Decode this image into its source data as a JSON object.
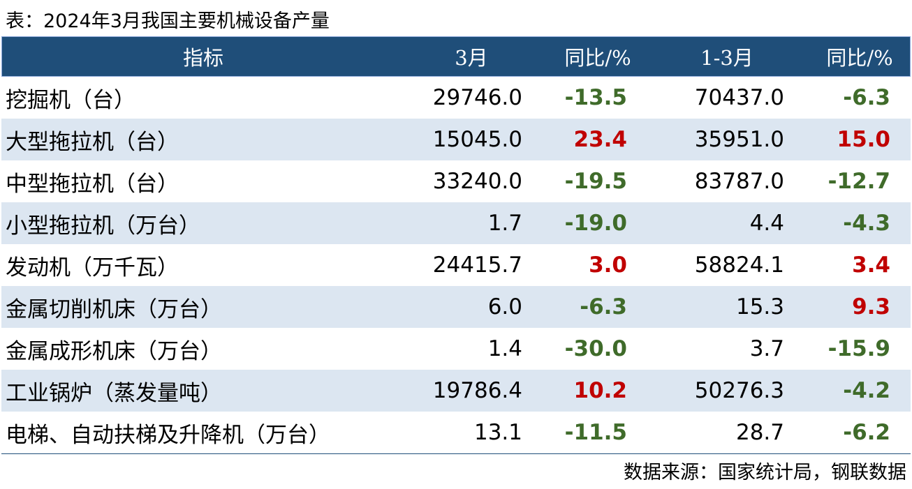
{
  "title": "表：2024年3月我国主要机械设备产量",
  "table": {
    "header": [
      "指标",
      "3月",
      "同比/%",
      "1-3月",
      "同比/%"
    ],
    "rows": [
      [
        "挖掘机（台）",
        "29746.0",
        "-13.5",
        "70437.0",
        "-6.3"
      ],
      [
        "大型拖拉机（台）",
        "15045.0",
        "23.4",
        "35951.0",
        "15.0"
      ],
      [
        "中型拖拉机（台）",
        "33240.0",
        "-19.5",
        "83787.0",
        "-12.7"
      ],
      [
        "小型拖拉机（万台）",
        "1.7",
        "-19.0",
        "4.4",
        "-4.3"
      ],
      [
        "发动机（万千瓦）",
        "24415.7",
        "3.0",
        "58824.1",
        "3.4"
      ],
      [
        "金属切削机床（万台）",
        "6.0",
        "-6.3",
        "15.3",
        "9.3"
      ],
      [
        "金属成形机床（万台）",
        "1.4",
        "-30.0",
        "3.7",
        "-15.9"
      ],
      [
        "工业锅炉（蒸发量吨）",
        "19786.4",
        "10.2",
        "50276.3",
        "-4.2"
      ],
      [
        "电梯、自动扶梯及升降机（万台）",
        "13.1",
        "-11.5",
        "28.7",
        "-6.2"
      ]
    ],
    "up_color": "#c00000",
    "down_color": "#3f6b2a"
  },
  "source": "数据来源：国家统计局，钢联数据"
}
